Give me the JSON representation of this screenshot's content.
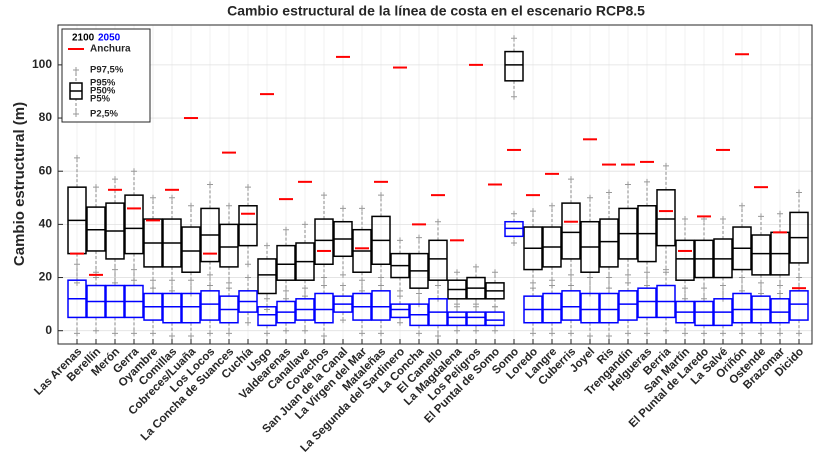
{
  "chart_data": {
    "type": "box",
    "title": "Cambio estructural de la línea de costa en el escenario RCP8.5",
    "y_label": "Cambio estructural (m)",
    "categories": [
      "Las Arenas",
      "Berellín",
      "Merón",
      "Gerra",
      "Oyambre",
      "Comillas",
      "Cobreces/Luaña",
      "Los Locos",
      "La Concha de Suances",
      "Cuchía",
      "Usgo",
      "Valdearenas",
      "Canallave",
      "Covachos",
      "San Juan de la Canal",
      "La Virgen del Mar",
      "Mataleñas",
      "La Segunda del Sardinero",
      "La Concha",
      "El Camello",
      "La Magdalena",
      "Los Peligros",
      "El Puntal de Somo",
      "Somo",
      "Loredo",
      "Langre",
      "Cuberris",
      "Joyel",
      "Ris",
      "Trengandín",
      "Helgueras",
      "Berria",
      "San Martín",
      "El Puntal de Laredo",
      "La Salvé",
      "Oriñón",
      "Ostende",
      "Brazomar",
      "Dicido"
    ],
    "series": [
      {
        "name": "2100",
        "color": "#000000",
        "low": [
          18,
          20,
          18,
          19,
          16,
          15,
          14,
          17,
          16,
          25,
          8,
          12,
          13,
          17,
          21,
          15,
          17,
          15,
          10,
          12,
          9,
          9,
          9,
          88,
          16,
          17,
          17,
          14,
          16,
          18,
          17,
          22,
          12,
          12,
          12,
          15,
          14,
          14,
          16
        ],
        "q1": [
          29,
          30,
          27,
          29,
          24,
          24,
          22,
          26,
          24,
          32,
          14,
          19,
          19,
          25,
          28,
          22,
          25,
          20,
          16,
          19,
          12,
          12,
          12,
          94,
          23,
          24,
          27,
          22,
          24,
          27,
          26,
          32,
          19,
          20,
          20,
          23,
          21,
          21,
          25.5
        ],
        "median": [
          41.5,
          38,
          37.5,
          38.5,
          33,
          33,
          30,
          36,
          31.5,
          40,
          21,
          25,
          26,
          34,
          34.5,
          30,
          34,
          24.5,
          22.5,
          27,
          15.5,
          16,
          15,
          100,
          31,
          31.5,
          37,
          31.5,
          33.5,
          36.5,
          36.5,
          42,
          27,
          27,
          27,
          31,
          29,
          29,
          35
        ],
        "q3": [
          54,
          46.5,
          48,
          51,
          42,
          42,
          39,
          46,
          40,
          47,
          27,
          32,
          33,
          42,
          41,
          38,
          43,
          29,
          29,
          34,
          19,
          20,
          18,
          105,
          39,
          39,
          48,
          41,
          42,
          46,
          47,
          53,
          34,
          34,
          34.5,
          39,
          36,
          37,
          44.5
        ],
        "high": [
          65,
          54,
          57,
          60,
          50,
          50,
          47,
          55,
          47,
          54,
          32,
          38,
          40,
          51,
          46,
          46,
          51,
          34,
          35,
          41,
          22,
          24,
          22,
          110,
          45,
          47,
          57,
          50,
          52,
          55,
          56,
          62,
          42,
          42,
          42,
          47,
          43,
          44,
          52
        ]
      },
      {
        "name": "2050",
        "color": "#0000ff",
        "low": [
          -1,
          0,
          -1,
          -1,
          -1,
          -2,
          -2,
          -1,
          -1,
          3,
          -1,
          0,
          0,
          -2,
          4,
          -1,
          -1,
          3,
          -1,
          -2,
          0,
          0,
          0,
          33,
          -1,
          -1,
          -1,
          -2,
          -2,
          -1,
          -1,
          0,
          -1,
          -1,
          -1,
          -1,
          -1,
          -1,
          -1
        ],
        "q1": [
          5,
          5,
          5,
          5,
          4,
          3,
          3,
          4,
          3,
          7,
          2,
          3,
          4,
          3,
          7,
          4,
          4,
          5,
          2,
          2,
          2,
          2,
          2,
          35.5,
          3,
          3,
          4,
          3,
          3,
          4,
          5,
          5,
          3,
          2,
          2,
          3,
          3,
          3,
          4
        ],
        "median": [
          12,
          11,
          11,
          11,
          9,
          9,
          9,
          10,
          8,
          11,
          6,
          7,
          8,
          8,
          10,
          9,
          9,
          8,
          6,
          7,
          5,
          5,
          4,
          38.5,
          8,
          8,
          9,
          8,
          8,
          10,
          11,
          11,
          7,
          7,
          7,
          8,
          8,
          7,
          10
        ],
        "q3": [
          19,
          17,
          17,
          17,
          14,
          14,
          14,
          15,
          13,
          15,
          9,
          11,
          12,
          14,
          13,
          14,
          15,
          10,
          10,
          12,
          7,
          7,
          7,
          41,
          13,
          14,
          15,
          14,
          14,
          15,
          16,
          17,
          11,
          11,
          12,
          14,
          13,
          12,
          15
        ],
        "high": [
          25,
          22,
          23,
          23,
          19,
          19,
          19,
          21,
          18,
          20,
          12,
          15,
          16,
          20,
          17,
          19,
          20,
          13,
          14,
          17,
          10,
          10,
          9,
          44,
          18,
          19,
          21,
          20,
          20,
          21,
          22,
          23,
          16,
          16,
          17,
          20,
          18,
          17,
          20
        ]
      }
    ],
    "anchura": {
      "name": "Anchura",
      "color": "#ff0000",
      "values": [
        29,
        21,
        53,
        46,
        41.5,
        53,
        80,
        29,
        67,
        44,
        89,
        49.5,
        56,
        30,
        103,
        31,
        56,
        99,
        40,
        51,
        34,
        100,
        55,
        68,
        51,
        59,
        41,
        72,
        62.5,
        62.5,
        63.5,
        45,
        30,
        43,
        68,
        104,
        54,
        37,
        16
      ]
    },
    "percentile_labels": [
      "P97,5%",
      "P95%",
      "P50%",
      "P5%",
      "P2,5%"
    ],
    "ylim": [
      -5,
      115
    ],
    "yticks": [
      0,
      20,
      40,
      60,
      80,
      100
    ],
    "grid": true
  }
}
